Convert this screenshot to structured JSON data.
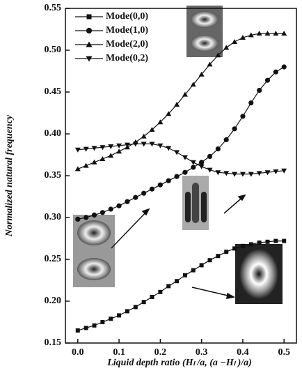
{
  "chart_data": {
    "type": "line",
    "x_label": "Liquid depth ratio (Hₗ /a,  (a −Hₗ )/a)",
    "y_label": "Normalized natural frequency",
    "x": [
      0,
      0.02,
      0.04,
      0.06,
      0.08,
      0.1,
      0.12,
      0.14,
      0.16,
      0.18,
      0.2,
      0.22,
      0.24,
      0.26,
      0.28,
      0.3,
      0.32,
      0.34,
      0.36,
      0.38,
      0.4,
      0.42,
      0.44,
      0.46,
      0.48,
      0.5
    ],
    "series": [
      {
        "name": "Mode(0,0)",
        "marker": "square",
        "color": "#111111",
        "values": [
          0.165,
          0.168,
          0.171,
          0.175,
          0.179,
          0.183,
          0.188,
          0.193,
          0.199,
          0.205,
          0.211,
          0.218,
          0.224,
          0.231,
          0.237,
          0.243,
          0.249,
          0.254,
          0.259,
          0.263,
          0.266,
          0.268,
          0.27,
          0.271,
          0.272,
          0.272
        ]
      },
      {
        "name": "Mode(1,0)",
        "marker": "circle",
        "color": "#111111",
        "values": [
          0.298,
          0.3,
          0.303,
          0.306,
          0.31,
          0.314,
          0.319,
          0.324,
          0.329,
          0.334,
          0.339,
          0.344,
          0.349,
          0.354,
          0.36,
          0.366,
          0.373,
          0.382,
          0.393,
          0.406,
          0.421,
          0.437,
          0.452,
          0.464,
          0.474,
          0.48
        ]
      },
      {
        "name": "Mode(2,0)",
        "marker": "triangle-up",
        "color": "#111111",
        "values": [
          0.358,
          0.362,
          0.366,
          0.37,
          0.374,
          0.379,
          0.384,
          0.39,
          0.397,
          0.405,
          0.414,
          0.424,
          0.435,
          0.447,
          0.459,
          0.471,
          0.483,
          0.494,
          0.503,
          0.51,
          0.515,
          0.518,
          0.52,
          0.52,
          0.52,
          0.52
        ]
      },
      {
        "name": "Mode(0,2)",
        "marker": "triangle-down",
        "color": "#111111",
        "values": [
          0.381,
          0.382,
          0.383,
          0.384,
          0.385,
          0.386,
          0.387,
          0.388,
          0.388,
          0.388,
          0.386,
          0.383,
          0.378,
          0.372,
          0.366,
          0.361,
          0.357,
          0.354,
          0.353,
          0.352,
          0.352,
          0.352,
          0.353,
          0.354,
          0.355,
          0.356
        ]
      }
    ],
    "xlim": [
      -0.03,
      0.53
    ],
    "xticks": [
      {
        "value": 0,
        "label": "0.0"
      },
      0.1,
      0.2,
      0.3,
      0.4,
      0.5
    ],
    "ylim": [
      0.15,
      0.55
    ],
    "yticks": [
      0.15,
      {
        "value": 0.2,
        "label": "0.20"
      },
      0.25,
      {
        "value": 0.3,
        "label": "0.30"
      },
      0.35,
      {
        "value": 0.4,
        "label": "0.40"
      },
      0.45,
      {
        "value": 0.5,
        "label": "0.50"
      },
      0.55
    ],
    "legend": "upper left"
  }
}
